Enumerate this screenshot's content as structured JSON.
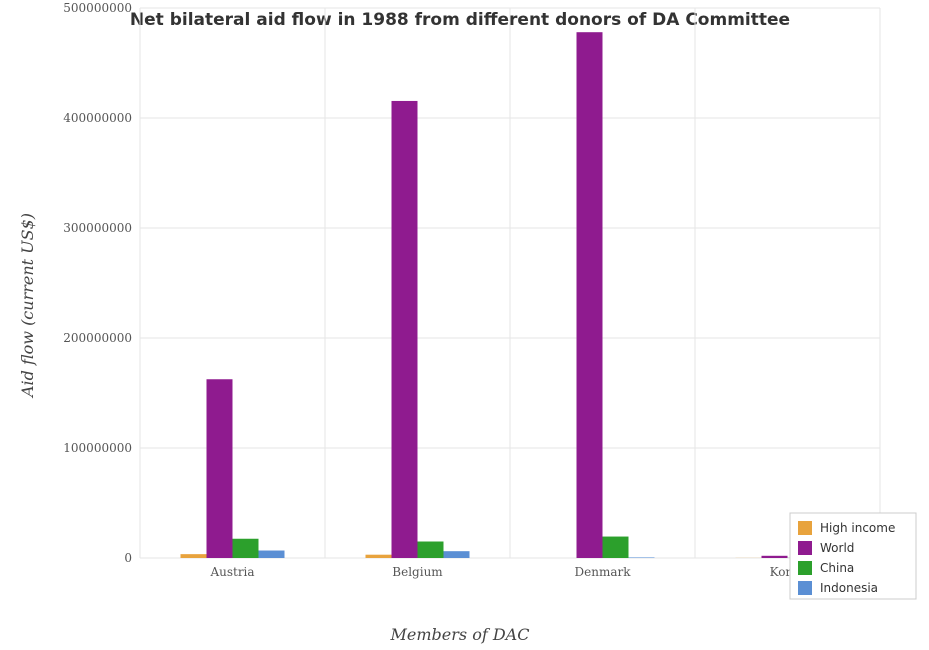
{
  "chart_data": {
    "type": "bar",
    "title": "Net bilateral aid flow in 1988 from different donors of DA Committee",
    "xlabel": "Members of DAC",
    "ylabel": "Aid flow (current US$)",
    "categories": [
      "Austria",
      "Belgium",
      "Denmark",
      "Korea"
    ],
    "ylim": [
      0,
      500000000
    ],
    "yticks": [
      0,
      100000000,
      200000000,
      300000000,
      400000000,
      500000000
    ],
    "ytick_labels": [
      "0",
      "100000000",
      "200000000",
      "300000000",
      "400000000",
      "500000000"
    ],
    "grid": true,
    "legend_position": "bottom-right",
    "series": [
      {
        "name": "High income",
        "color": "#e8a33d",
        "values": [
          3500000,
          3000000,
          0,
          100000
        ]
      },
      {
        "name": "World",
        "color": "#8f1b8f",
        "values": [
          162500000,
          415500000,
          478000000,
          2000000
        ]
      },
      {
        "name": "China",
        "color": "#2ca02c",
        "values": [
          17500000,
          15000000,
          19500000,
          100000
        ]
      },
      {
        "name": "Indonesia",
        "color": "#5b8fd4",
        "values": [
          6800000,
          6200000,
          500000,
          300000
        ]
      }
    ]
  }
}
